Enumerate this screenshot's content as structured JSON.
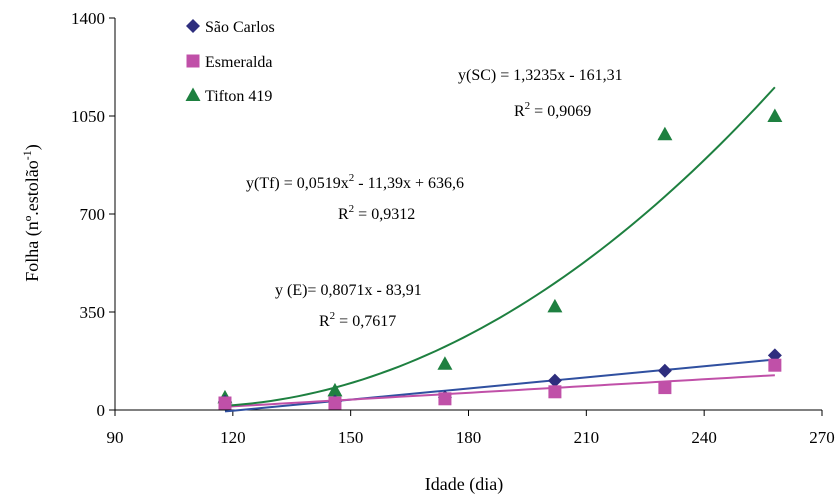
{
  "chart_data": {
    "type": "scatter",
    "xlabel": "Idade (dia)",
    "ylabel_main": "Folha (nº.estolão",
    "ylabel_sup": "-1",
    "ylabel_close": ")",
    "xlim": [
      90,
      270
    ],
    "ylim": [
      0,
      1400
    ],
    "xticks": [
      90,
      120,
      150,
      180,
      210,
      240,
      270
    ],
    "yticks": [
      0,
      350,
      700,
      1050,
      1400
    ],
    "legend_position": "top-left",
    "series": [
      {
        "name": "São Carlos",
        "marker": "diamond",
        "color": "#2E2E7E",
        "x": [
          118,
          146,
          174,
          202,
          230,
          258
        ],
        "y": [
          30,
          30,
          45,
          105,
          140,
          195
        ],
        "trend": {
          "type": "linear",
          "a": 1.3235,
          "b": -161.31,
          "from": 118,
          "to": 258,
          "color": "#3050A0"
        }
      },
      {
        "name": "Esmeralda",
        "marker": "square",
        "color": "#C050A8",
        "x": [
          118,
          146,
          174,
          202,
          230,
          258
        ],
        "y": [
          25,
          25,
          40,
          65,
          80,
          160
        ],
        "trend": {
          "type": "linear",
          "a": 0.8071,
          "b": -83.91,
          "from": 118,
          "to": 258,
          "color": "#C050A8"
        }
      },
      {
        "name": "Tifton 419",
        "marker": "triangle",
        "color": "#1E8040",
        "x": [
          118,
          146,
          174,
          202,
          230,
          258
        ],
        "y": [
          45,
          70,
          165,
          370,
          985,
          1050
        ],
        "trend": {
          "type": "quadratic",
          "a": 0.0519,
          "b": -11.39,
          "c": 636.6,
          "from": 118,
          "to": 258,
          "color": "#1E8040"
        }
      }
    ],
    "annotations": [
      {
        "id": "sc",
        "line1": "y(SC) = 1,3235x - 161,31",
        "r2_value": " = 0,9069"
      },
      {
        "id": "tf",
        "line1_a": "y(Tf) = 0,0519x",
        "line1_sup": "2",
        "line1_b": " - 11,39x + 636,6",
        "r2_value": " = 0,9312"
      },
      {
        "id": "e",
        "line1": "y (E)= 0,8071x - 83,91",
        "r2_value": " = 0,7617"
      }
    ],
    "r2_label": "R",
    "r2_sup": "2"
  }
}
